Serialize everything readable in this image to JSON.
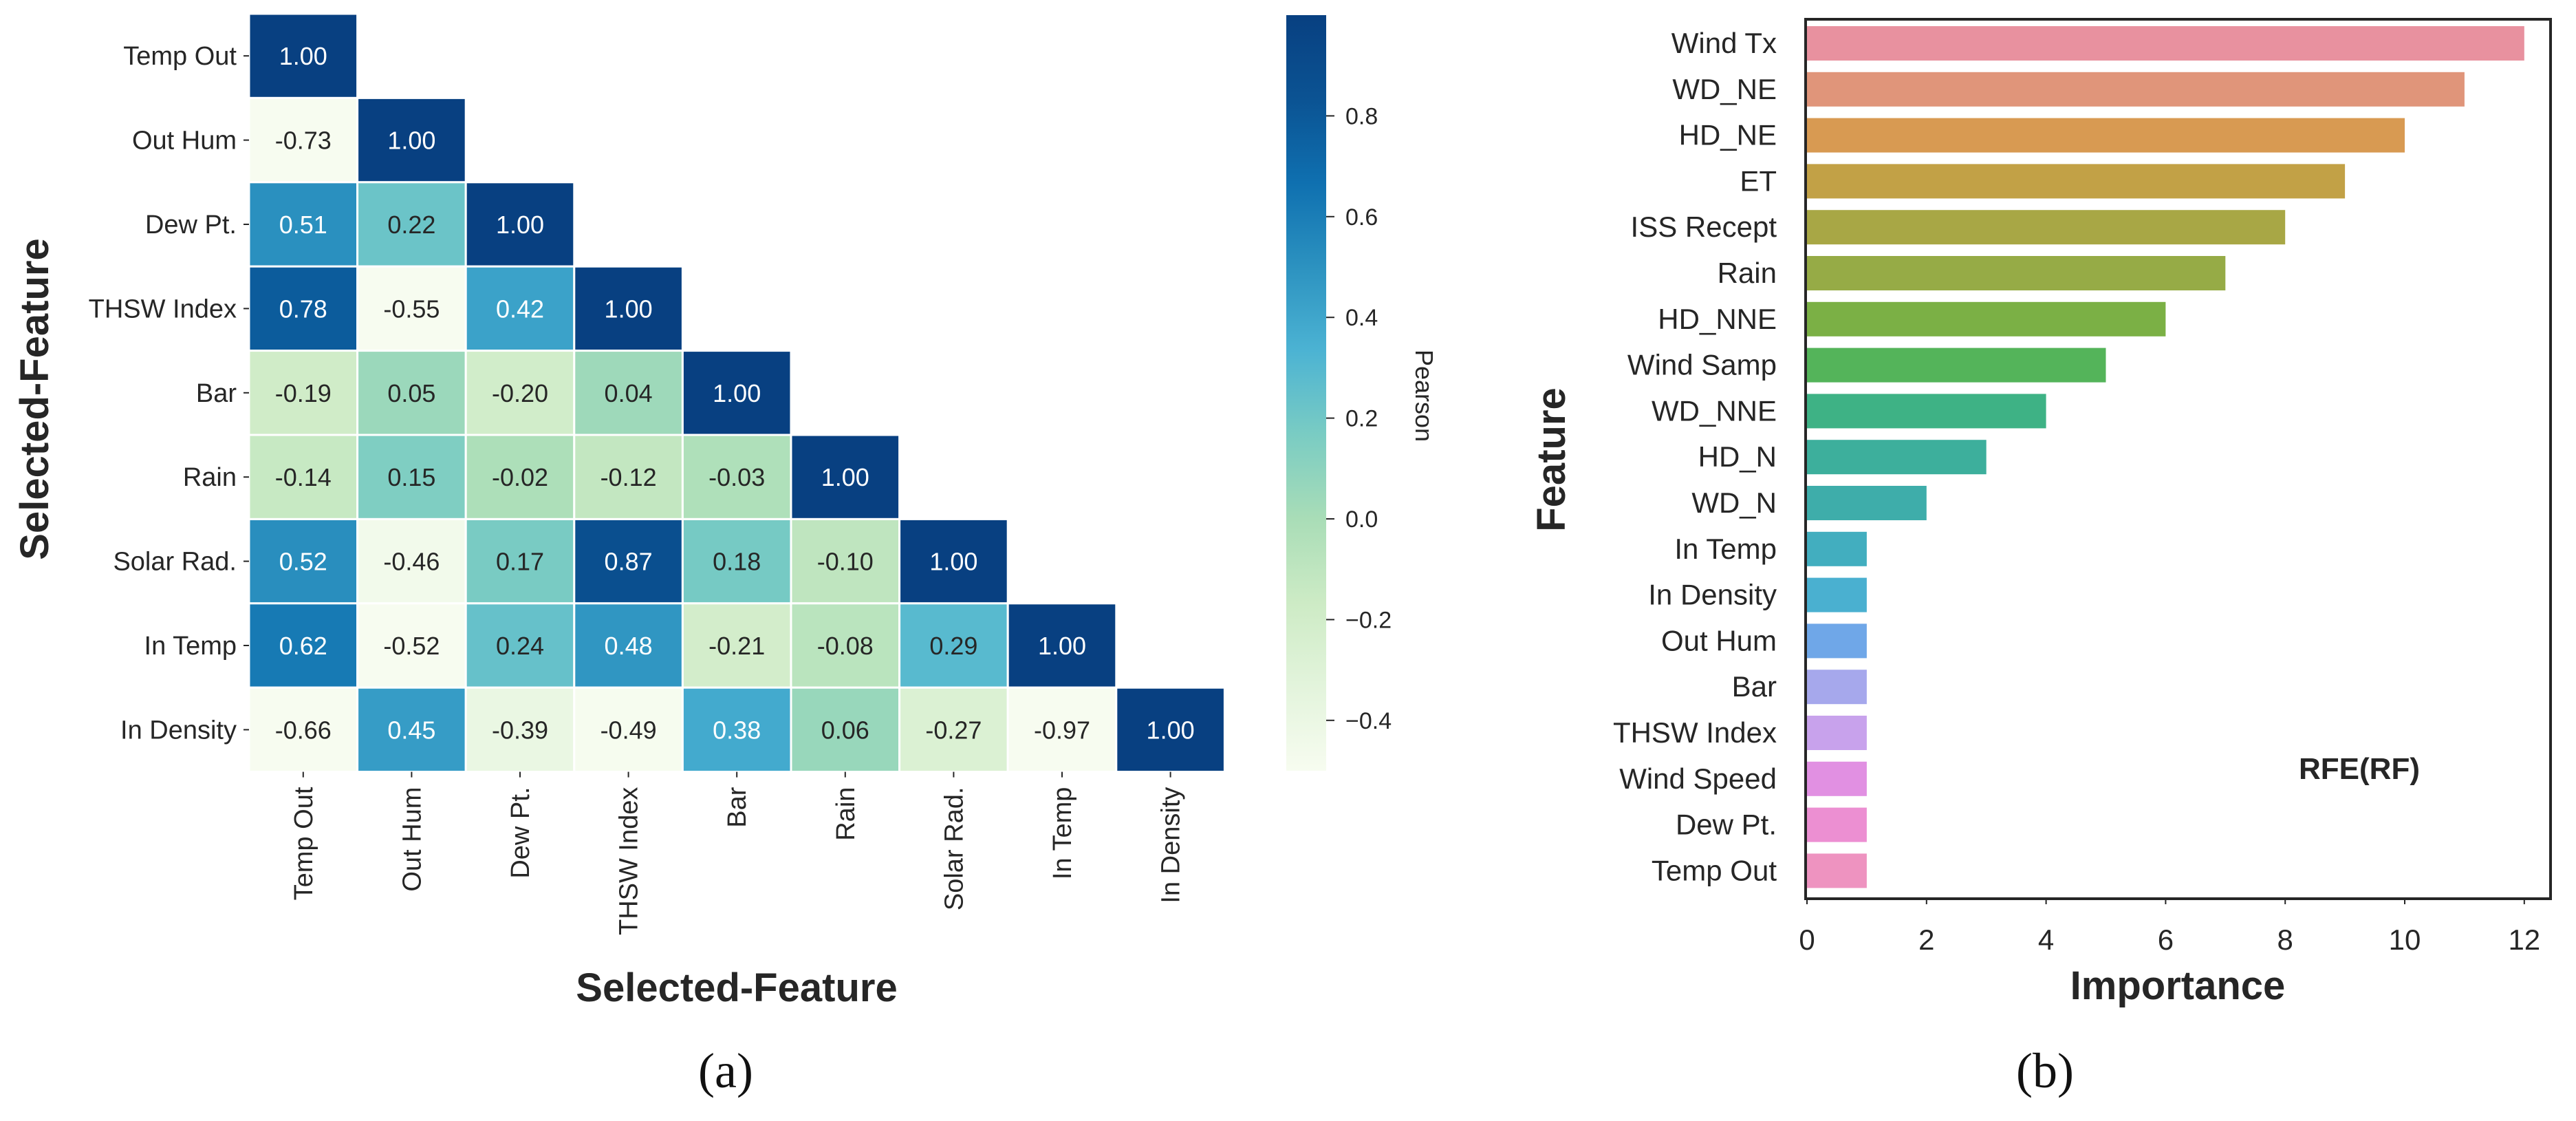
{
  "captions": {
    "a": "(a)",
    "b": "(b)"
  },
  "chart_data": [
    {
      "type": "heatmap",
      "xlabel": "Selected-Feature",
      "ylabel": "Selected-Feature",
      "colorbar_label": "Pearson",
      "colorbar_ticks": [
        "0.8",
        "0.6",
        "0.4",
        "0.2",
        "0.0",
        "−0.2",
        "−0.4"
      ],
      "colorbar_tick_values": [
        0.8,
        0.6,
        0.4,
        0.2,
        0.0,
        -0.2,
        -0.4
      ],
      "vmin": -0.5,
      "vmax": 1.0,
      "categories": [
        "Temp Out",
        "Out Hum",
        "Dew Pt.",
        "THSW Index",
        "Bar",
        "Rain",
        "Solar Rad.",
        "In Temp",
        "In Density"
      ],
      "matrix": [
        [
          1.0
        ],
        [
          -0.73,
          1.0
        ],
        [
          0.51,
          0.22,
          1.0
        ],
        [
          0.78,
          -0.55,
          0.42,
          1.0
        ],
        [
          -0.19,
          0.05,
          -0.2,
          0.04,
          1.0
        ],
        [
          -0.14,
          0.15,
          -0.02,
          -0.12,
          -0.03,
          1.0
        ],
        [
          0.52,
          -0.46,
          0.17,
          0.87,
          0.18,
          -0.1,
          1.0
        ],
        [
          0.62,
          -0.52,
          0.24,
          0.48,
          -0.21,
          -0.08,
          0.29,
          1.0
        ],
        [
          -0.66,
          0.45,
          -0.39,
          -0.49,
          0.38,
          0.06,
          -0.27,
          -0.97,
          1.0
        ]
      ],
      "cell_labels": [
        [
          "1.00"
        ],
        [
          "-0.73",
          "1.00"
        ],
        [
          "0.51",
          "0.22",
          "1.00"
        ],
        [
          "0.78",
          "-0.55",
          "0.42",
          "1.00"
        ],
        [
          "-0.19",
          "0.05",
          "-0.20",
          "0.04",
          "1.00"
        ],
        [
          "-0.14",
          "0.15",
          "-0.02",
          "-0.12",
          "-0.03",
          "1.00"
        ],
        [
          "0.52",
          "-0.46",
          "0.17",
          "0.87",
          "0.18",
          "-0.10",
          "1.00"
        ],
        [
          "0.62",
          "-0.52",
          "0.24",
          "0.48",
          "-0.21",
          "-0.08",
          "0.29",
          "1.00"
        ],
        [
          "-0.66",
          "0.45",
          "-0.39",
          "-0.49",
          "0.38",
          "0.06",
          "-0.27",
          "-0.97",
          "1.00"
        ]
      ]
    },
    {
      "type": "bar",
      "orientation": "horizontal",
      "annotation": "RFE(RF)",
      "xlabel": "Importance",
      "ylabel": "Feature",
      "xlim": [
        0,
        12.5
      ],
      "xticks": [
        0,
        2,
        4,
        6,
        8,
        10,
        12
      ],
      "categories": [
        "Wind Tx",
        "WD_NE",
        "HD_NE",
        "ET",
        "ISS Recept",
        "Rain",
        "HD_NNE",
        "Wind Samp",
        "WD_NNE",
        "HD_N",
        "WD_N",
        "In Temp",
        "In Density",
        "Out Hum",
        "Bar",
        "THSW Index",
        "Wind Speed",
        "Dew Pt.",
        "Temp Out"
      ],
      "values": [
        12,
        11,
        10,
        9,
        8,
        7,
        6,
        5,
        4,
        3,
        2,
        1,
        1,
        1,
        1,
        1,
        1,
        1,
        1
      ],
      "colors": [
        "#e8919f",
        "#e0957a",
        "#d89a52",
        "#c2a146",
        "#a8a745",
        "#96ab46",
        "#7bb045",
        "#54b45a",
        "#3eb285",
        "#3daf9c",
        "#3eadaa",
        "#42aebf",
        "#4ab0d0",
        "#6fa7e8",
        "#a6a8ec",
        "#c8a2ec",
        "#e190e2",
        "#ec8fd2",
        "#ee93c0"
      ]
    }
  ]
}
